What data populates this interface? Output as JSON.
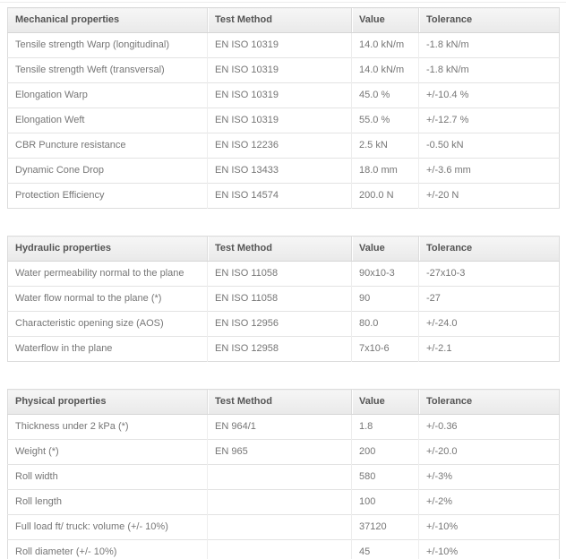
{
  "columns": [
    "Test Method",
    "Value",
    "Tolerance"
  ],
  "colors": {
    "header_background": "#ededed",
    "header_text": "#555555",
    "body_text": "#767676",
    "border": "#dcdcdc",
    "row_divider": "#e3e3e3"
  },
  "tables": [
    {
      "title": "Mechanical properties",
      "rows": [
        {
          "property": "Tensile strength Warp (longitudinal)",
          "method": "EN ISO 10319",
          "value": "14.0 kN/m",
          "tolerance": "-1.8 kN/m"
        },
        {
          "property": "Tensile strength Weft (transversal)",
          "method": "EN ISO 10319",
          "value": "14.0 kN/m",
          "tolerance": "-1.8 kN/m"
        },
        {
          "property": "Elongation Warp",
          "method": "EN ISO 10319",
          "value": "45.0 %",
          "tolerance": "+/-10.4 %"
        },
        {
          "property": "Elongation Weft",
          "method": "EN ISO 10319",
          "value": "55.0 %",
          "tolerance": "+/-12.7 %"
        },
        {
          "property": "CBR Puncture resistance",
          "method": "EN ISO 12236",
          "value": "2.5 kN",
          "tolerance": "-0.50 kN"
        },
        {
          "property": "Dynamic Cone Drop",
          "method": "EN ISO 13433",
          "value": "18.0 mm",
          "tolerance": "+/-3.6 mm"
        },
        {
          "property": "Protection Efficiency",
          "method": "EN ISO 14574",
          "value": "200.0 N",
          "tolerance": "+/-20 N"
        }
      ]
    },
    {
      "title": "Hydraulic properties",
      "rows": [
        {
          "property": "Water permeability normal to the plane",
          "method": "EN ISO 11058",
          "value": "90x10-3",
          "tolerance": "-27x10-3"
        },
        {
          "property": "Water flow normal to the plane (*)",
          "method": "EN ISO 11058",
          "value": "90",
          "tolerance": "-27"
        },
        {
          "property": "Characteristic opening size (AOS)",
          "method": "EN ISO 12956",
          "value": "80.0",
          "tolerance": "+/-24.0"
        },
        {
          "property": "Waterflow in the plane",
          "method": "EN ISO 12958",
          "value": "7x10-6",
          "tolerance": "+/-2.1"
        }
      ]
    },
    {
      "title": "Physical properties",
      "rows": [
        {
          "property": "Thickness under 2 kPa (*)",
          "method": "EN 964/1",
          "value": "1.8",
          "tolerance": "+/-0.36"
        },
        {
          "property": "Weight (*)",
          "method": "EN 965",
          "value": "200",
          "tolerance": "+/-20.0"
        },
        {
          "property": "Roll width",
          "method": "",
          "value": "580",
          "tolerance": "+/-3%"
        },
        {
          "property": "Roll length",
          "method": "",
          "value": "100",
          "tolerance": "+/-2%"
        },
        {
          "property": "Full load ft/ truck: volume (+/- 10%)",
          "method": "",
          "value": "37120",
          "tolerance": "+/-10%"
        },
        {
          "property": "Roll diameter (+/- 10%)",
          "method": "",
          "value": "45",
          "tolerance": "+/-10%"
        }
      ]
    }
  ]
}
